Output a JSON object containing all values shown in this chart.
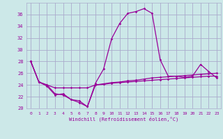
{
  "x": [
    0,
    1,
    2,
    3,
    4,
    5,
    6,
    7,
    8,
    9,
    10,
    11,
    12,
    13,
    14,
    15,
    16,
    17,
    18,
    19,
    20,
    21,
    22,
    23
  ],
  "line_peak": [
    28,
    24.5,
    24.0,
    22.5,
    22.3,
    21.5,
    21.0,
    20.3,
    24.3,
    26.7,
    31.9,
    34.5,
    36.2,
    36.5,
    37.0,
    36.2,
    28.3,
    25.5,
    25.5,
    25.3,
    25.5,
    27.5,
    26.3,
    25.2
  ],
  "line_flat": [
    28,
    24.5,
    24.0,
    23.5,
    23.5,
    23.5,
    23.5,
    23.5,
    24.0,
    24.2,
    24.4,
    24.5,
    24.7,
    24.8,
    25.0,
    25.2,
    25.3,
    25.4,
    25.5,
    25.6,
    25.7,
    25.8,
    25.9,
    26.0
  ],
  "line_dip": [
    28,
    24.5,
    23.8,
    22.3,
    22.5,
    21.5,
    21.3,
    20.3,
    24.0,
    24.1,
    24.3,
    24.4,
    24.5,
    24.6,
    24.7,
    24.8,
    24.9,
    25.0,
    25.1,
    25.2,
    25.3,
    25.4,
    25.5,
    25.5
  ],
  "line_color": "#990099",
  "bg_color": "#cce8e8",
  "grid_color": "#aaaacc",
  "xlabel": "Windchill (Refroidissement éolien,°C)",
  "ylim": [
    20,
    38
  ],
  "xlim": [
    -0.5,
    23.5
  ],
  "yticks": [
    20,
    22,
    24,
    26,
    28,
    30,
    32,
    34,
    36
  ],
  "xticks": [
    0,
    1,
    2,
    3,
    4,
    5,
    6,
    7,
    8,
    9,
    10,
    11,
    12,
    13,
    14,
    15,
    16,
    17,
    18,
    19,
    20,
    21,
    22,
    23
  ]
}
